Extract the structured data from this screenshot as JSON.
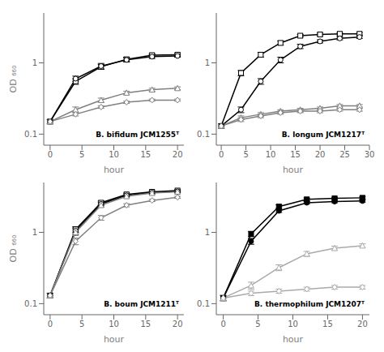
{
  "chart_data": [
    {
      "type": "line",
      "annotation": "B. bifidum JCM1255ᵀ",
      "x_label": "hour",
      "y_label": "OD ₆₆₀",
      "log": "y",
      "xlim": [
        -1,
        21
      ],
      "xticks": [
        0,
        5,
        10,
        15,
        20
      ],
      "ylim": [
        0.07,
        5.0
      ],
      "yticks": [
        0.1,
        1
      ],
      "x": [
        0,
        4,
        8,
        12,
        16,
        20
      ],
      "series": [
        {
          "color": "black",
          "marker": "square",
          "values": [
            0.15,
            0.55,
            0.88,
            1.12,
            1.28,
            1.3
          ],
          "errors": [
            0.01,
            0.05,
            0.07,
            0.08,
            0.06,
            0.06
          ]
        },
        {
          "color": "black",
          "marker": "circle",
          "values": [
            0.15,
            0.6,
            0.9,
            1.1,
            1.22,
            1.25
          ],
          "errors": [
            0.01,
            0.05,
            0.08,
            0.07,
            0.07,
            0.05
          ]
        },
        {
          "color": "gray",
          "marker": "triangle",
          "values": [
            0.15,
            0.22,
            0.3,
            0.38,
            0.42,
            0.44
          ],
          "errors": [
            0.01,
            0.02,
            0.02,
            0.02,
            0.02,
            0.02
          ]
        },
        {
          "color": "gray",
          "marker": "diamond",
          "values": [
            0.15,
            0.19,
            0.24,
            0.28,
            0.3,
            0.3
          ],
          "errors": [
            0.01,
            0.01,
            0.01,
            0.01,
            0.01,
            0.01
          ]
        }
      ]
    },
    {
      "type": "line",
      "annotation": "B. longum JCM1217ᵀ",
      "x_label": "hour",
      "log": "y",
      "xlim": [
        -1,
        30
      ],
      "xticks": [
        0,
        5,
        10,
        15,
        20,
        25,
        30
      ],
      "ylim": [
        0.07,
        5.0
      ],
      "yticks": [
        0.1,
        1
      ],
      "x": [
        0,
        4,
        8,
        12,
        16,
        20,
        24,
        28
      ],
      "series": [
        {
          "color": "black",
          "marker": "square",
          "values": [
            0.13,
            0.72,
            1.3,
            1.9,
            2.4,
            2.5,
            2.55,
            2.55
          ],
          "errors": [
            0.01,
            0.06,
            0.1,
            0.12,
            0.1,
            0.1,
            0.1,
            0.1
          ]
        },
        {
          "color": "black",
          "marker": "circle",
          "values": [
            0.13,
            0.22,
            0.55,
            1.1,
            1.7,
            2.0,
            2.2,
            2.3
          ],
          "errors": [
            0.01,
            0.02,
            0.05,
            0.1,
            0.12,
            0.1,
            0.1,
            0.1
          ]
        },
        {
          "color": "gray",
          "marker": "triangle",
          "values": [
            0.13,
            0.17,
            0.19,
            0.21,
            0.22,
            0.23,
            0.25,
            0.25
          ],
          "errors": [
            0.01,
            0.01,
            0.01,
            0.01,
            0.01,
            0.01,
            0.01,
            0.01
          ]
        },
        {
          "color": "gray",
          "marker": "diamond",
          "values": [
            0.13,
            0.16,
            0.18,
            0.2,
            0.21,
            0.21,
            0.22,
            0.22
          ],
          "errors": [
            0.01,
            0.01,
            0.01,
            0.01,
            0.01,
            0.01,
            0.01,
            0.01
          ]
        }
      ]
    },
    {
      "type": "line",
      "annotation": "B. boum JCM1211ᵀ",
      "x_label": "hour",
      "y_label": "OD ₆₆₀",
      "log": "y",
      "xlim": [
        -1,
        21
      ],
      "xticks": [
        0,
        5,
        10,
        15,
        20
      ],
      "ylim": [
        0.07,
        5.0
      ],
      "yticks": [
        0.1,
        1
      ],
      "x": [
        0,
        4,
        8,
        12,
        16,
        20
      ],
      "series": [
        {
          "color": "black",
          "marker": "square",
          "values": [
            0.13,
            1.1,
            2.6,
            3.4,
            3.7,
            3.85
          ],
          "errors": [
            0.01,
            0.1,
            0.15,
            0.15,
            0.12,
            0.12
          ]
        },
        {
          "color": "black",
          "marker": "circle",
          "values": [
            0.13,
            1.05,
            2.5,
            3.3,
            3.6,
            3.75
          ],
          "errors": [
            0.01,
            0.1,
            0.15,
            0.15,
            0.12,
            0.12
          ]
        },
        {
          "color": "gray",
          "marker": "triangle",
          "values": [
            0.13,
            1.0,
            2.4,
            3.2,
            3.55,
            3.7
          ],
          "errors": [
            0.01,
            0.1,
            0.15,
            0.15,
            0.12,
            0.12
          ]
        },
        {
          "color": "gray",
          "marker": "diamond",
          "values": [
            0.13,
            0.75,
            1.6,
            2.4,
            2.8,
            3.1
          ],
          "errors": [
            0.01,
            0.08,
            0.12,
            0.12,
            0.1,
            0.1
          ]
        }
      ]
    },
    {
      "type": "line",
      "annotation": "B. thermophilum JCM1207ᵀ",
      "x_label": "hour",
      "log": "y",
      "xlim": [
        -1,
        21
      ],
      "xticks": [
        0,
        5,
        10,
        15,
        20
      ],
      "ylim": [
        0.07,
        5.0
      ],
      "yticks": [
        0.1,
        1
      ],
      "x": [
        0,
        4,
        8,
        12,
        16,
        20
      ],
      "series": [
        {
          "color": "black",
          "marker": "filled_square",
          "values": [
            0.12,
            0.95,
            2.3,
            2.9,
            3.0,
            3.05
          ],
          "errors": [
            0.01,
            0.08,
            0.12,
            0.12,
            0.1,
            0.1
          ]
        },
        {
          "color": "black",
          "marker": "filled_circle",
          "values": [
            0.12,
            0.75,
            2.0,
            2.6,
            2.7,
            2.75
          ],
          "errors": [
            0.01,
            0.07,
            0.1,
            0.1,
            0.1,
            0.1
          ]
        },
        {
          "color": "#aaaaaa",
          "marker": "triangle",
          "values": [
            0.12,
            0.18,
            0.32,
            0.5,
            0.6,
            0.65
          ],
          "errors": [
            0.01,
            0.02,
            0.03,
            0.04,
            0.04,
            0.04
          ]
        },
        {
          "color": "#aaaaaa",
          "marker": "diamond",
          "values": [
            0.12,
            0.14,
            0.15,
            0.16,
            0.17,
            0.17
          ],
          "errors": [
            0.01,
            0.01,
            0.01,
            0.01,
            0.01,
            0.01
          ]
        }
      ]
    }
  ]
}
